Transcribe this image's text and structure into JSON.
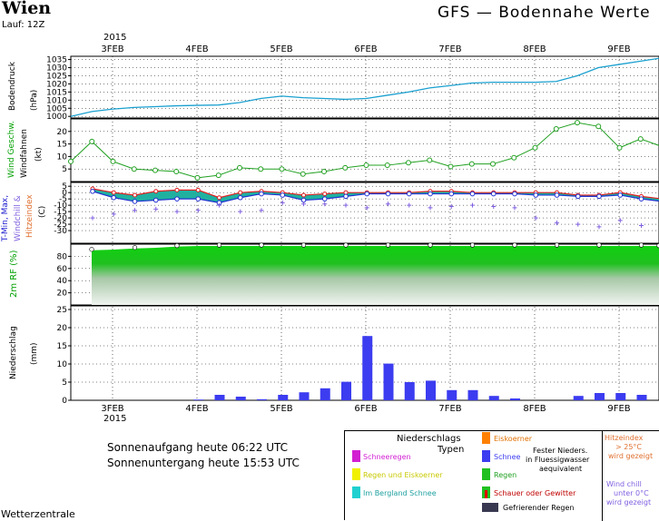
{
  "header": {
    "station": "Wien",
    "run": "Lauf: 12Z",
    "model_title": "GFS — Bodennahe Werte",
    "year_top": "2015",
    "year_bottom": "2015"
  },
  "date_labels": [
    "3FEB",
    "4FEB",
    "5FEB",
    "6FEB",
    "7FEB",
    "8FEB",
    "9FEB"
  ],
  "panel_labels": {
    "pressure": [
      "Bodendruck",
      "(hPa)"
    ],
    "wind": [
      "Wind Geschw.",
      "Windfahnen",
      "(kt)"
    ],
    "temp": [
      "T-Min, Max,",
      "Windchill &",
      "Hitzeindex",
      "(C)"
    ],
    "rh": [
      "2m RF (%)"
    ],
    "precip": [
      "Niederschlag",
      "(mm)"
    ]
  },
  "sun": {
    "sunrise": "Sonnenaufgang heute 06:22 UTC",
    "sunset": "Sonnenuntergang heute 15:53 UTC"
  },
  "footer": "Wetterzentrale",
  "legend": {
    "heading": "Niederschlags",
    "heading2": "Typen",
    "items_left": [
      "Schneeregen",
      "Regen und Eiskoerner",
      "Im Bergland Schnee"
    ],
    "items_mid": [
      "Eiskoerner",
      "Schnee",
      "Regen",
      "Schauer oder Gewitter"
    ],
    "fest": [
      "Fester Nieders.",
      "in Fluessigwasser",
      "aequivalent"
    ],
    "freezing": "Gefrierender Regen",
    "hitze": [
      "Hitzeindex",
      "> 25°C",
      "wird gezeigt"
    ],
    "chill": [
      "Wind chill",
      "unter 0°C",
      "wird gezeigt"
    ],
    "colors": {
      "schneeregen": "#d21fd2",
      "regen_eis": "#f0f000",
      "bergland": "#20d0d0",
      "eiskoerner": "#ff8000",
      "schnee": "#3c3cf0",
      "regen": "#20c020",
      "schauer": "#e00000",
      "gefrierend": "#383850",
      "hitze": "#e07030",
      "chill": "#8060e0"
    }
  },
  "chart_data": [
    {
      "type": "line",
      "name": "pressure",
      "ylabel": "Bodendruck (hPa)",
      "yticks": [
        1000,
        1005,
        1010,
        1015,
        1020,
        1025,
        1030,
        1035
      ],
      "ylim": [
        999,
        1037
      ],
      "x_days": [
        0.0,
        0.25,
        0.5,
        0.75,
        1.0,
        1.25,
        1.5,
        1.75,
        2.0,
        2.25,
        2.5,
        2.75,
        3.0,
        3.25,
        3.5,
        3.75,
        4.0,
        4.25,
        4.5,
        4.75,
        5.0,
        5.25,
        5.5,
        5.75,
        6.0,
        6.25,
        6.5,
        6.75,
        7.0
      ],
      "values": [
        1000,
        1003,
        1004.5,
        1005.5,
        1006,
        1006.5,
        1006.8,
        1007,
        1008.5,
        1011,
        1012.5,
        1011.5,
        1011,
        1010.5,
        1011,
        1013,
        1015,
        1017.5,
        1019,
        1020.5,
        1021,
        1021,
        1021,
        1021.5,
        1025,
        1030,
        1032,
        1034,
        1036
      ]
    },
    {
      "type": "line",
      "name": "wind",
      "ylabel": "Wind Geschw. (kt)",
      "yticks": [
        5,
        10,
        15,
        20
      ],
      "ylim": [
        0,
        25
      ],
      "x_days": [
        0.0,
        0.25,
        0.5,
        0.75,
        1.0,
        1.25,
        1.5,
        1.75,
        2.0,
        2.25,
        2.5,
        2.75,
        3.0,
        3.25,
        3.5,
        3.75,
        4.0,
        4.25,
        4.5,
        4.75,
        5.0,
        5.25,
        5.5,
        5.75,
        6.0,
        6.25,
        6.5,
        6.75,
        7.0
      ],
      "values": [
        8,
        16,
        8,
        5,
        4.5,
        4,
        1.5,
        2.5,
        5.5,
        5,
        5,
        3,
        4,
        5.5,
        6.5,
        6.5,
        7.5,
        8.5,
        6,
        7,
        7,
        9.5,
        13.5,
        21,
        23.5,
        22,
        13.5,
        17,
        14
      ]
    },
    {
      "type": "area",
      "name": "temperature",
      "ylabel": "T-Min, Max, Windchill & Hitzeindex (C)",
      "yticks": [
        -30,
        -25,
        -20,
        -15,
        -10,
        -5,
        0,
        5
      ],
      "ylim": [
        -40,
        8
      ],
      "x_days": [
        0.0,
        0.25,
        0.5,
        0.75,
        1.0,
        1.25,
        1.5,
        1.75,
        2.0,
        2.25,
        2.5,
        2.75,
        3.0,
        3.25,
        3.5,
        3.75,
        4.0,
        4.25,
        4.5,
        4.75,
        5.0,
        5.25,
        5.5,
        5.75,
        6.0,
        6.25,
        6.5,
        6.75,
        7.0
      ],
      "series": [
        {
          "name": "T-Max",
          "values": [
            3,
            0,
            -2,
            1,
            2,
            2,
            -4,
            0,
            1,
            0,
            -2,
            -1,
            0,
            0,
            0,
            0,
            1,
            1,
            0,
            0,
            0,
            0,
            0,
            -2,
            -2,
            0,
            -3,
            -5,
            -8
          ]
        },
        {
          "name": "T-Min",
          "values": [
            1,
            -4,
            -7,
            -6,
            -5,
            -5,
            -8,
            -4,
            -1,
            -2,
            -6,
            -5,
            -3,
            -1,
            -1,
            -1,
            -1,
            -1,
            -1,
            -1,
            -1,
            -2,
            -2,
            -3,
            -3,
            -2,
            -5,
            -7,
            -10
          ]
        },
        {
          "name": "Windchill",
          "values": [
            -20,
            -17,
            -14,
            -13,
            -15,
            -14,
            -10,
            -15,
            -14,
            -8,
            -9,
            -9,
            -10,
            -12,
            -9,
            -10,
            -12,
            -11,
            -10,
            -11,
            -12,
            -20,
            -24,
            -25,
            -27,
            -22,
            -26,
            -30,
            -32
          ]
        }
      ]
    },
    {
      "type": "area",
      "name": "relative_humidity",
      "ylabel": "2m RF (%)",
      "yticks": [
        20,
        40,
        60,
        80
      ],
      "ylim": [
        0,
        100
      ],
      "x_days": [
        0.0,
        0.25,
        0.5,
        0.75,
        1.0,
        1.25,
        1.5,
        1.75,
        2.0,
        2.25,
        2.5,
        2.75,
        3.0,
        3.25,
        3.5,
        3.75,
        4.0,
        4.25,
        4.5,
        4.75,
        5.0,
        5.25,
        5.5,
        5.75,
        6.0,
        6.25,
        6.5,
        6.75,
        7.0
      ],
      "values": [
        90,
        91,
        93,
        94,
        96,
        97,
        97,
        97,
        97,
        97,
        97,
        97,
        97,
        97,
        97,
        97,
        97,
        97,
        97,
        97,
        97,
        97,
        97,
        97,
        97,
        97,
        97,
        97,
        96
      ]
    },
    {
      "type": "bar",
      "name": "precipitation",
      "ylabel": "Niederschlag (mm)",
      "yticks": [
        0,
        5,
        10,
        15,
        20,
        25
      ],
      "ylim": [
        0,
        26
      ],
      "x_days": [
        1.25,
        1.5,
        1.75,
        2.0,
        2.25,
        2.5,
        2.75,
        3.0,
        3.25,
        3.5,
        3.75,
        4.0,
        4.25,
        4.5,
        4.75,
        5.0,
        5.25,
        5.5,
        5.75,
        6.0,
        6.25,
        6.5,
        6.75
      ],
      "values": [
        0.2,
        1.5,
        1.0,
        0.3,
        1.5,
        2.2,
        3.3,
        5.1,
        17.7,
        10.1,
        5.0,
        5.4,
        2.8,
        2.8,
        1.2,
        0.5,
        0,
        0,
        1.2,
        2.0,
        2.0,
        1.5,
        0
      ]
    }
  ]
}
